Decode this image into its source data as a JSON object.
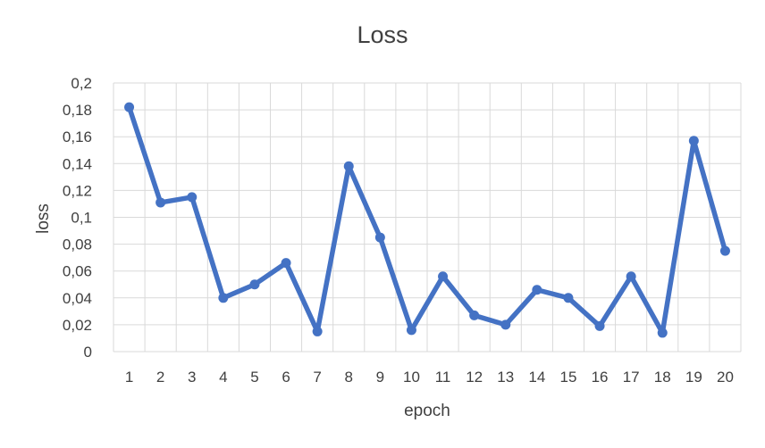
{
  "chart_data": {
    "type": "line",
    "title": "Loss",
    "xlabel": "epoch",
    "ylabel": "loss",
    "categories": [
      "1",
      "2",
      "3",
      "4",
      "5",
      "6",
      "7",
      "8",
      "9",
      "10",
      "11",
      "12",
      "13",
      "14",
      "15",
      "16",
      "17",
      "18",
      "19",
      "20"
    ],
    "series": [
      {
        "values": [
          0.182,
          0.111,
          0.115,
          0.04,
          0.05,
          0.066,
          0.015,
          0.138,
          0.085,
          0.016,
          0.056,
          0.027,
          0.02,
          0.046,
          0.04,
          0.019,
          0.056,
          0.014,
          0.157,
          0.075
        ]
      }
    ],
    "ylim": [
      0,
      0.2
    ],
    "yticks": [
      0,
      0.02,
      0.04,
      0.06,
      0.08,
      0.1,
      0.12,
      0.14,
      0.16,
      0.18,
      0.2
    ],
    "ytick_labels": [
      "0",
      "0,02",
      "0,04",
      "0,06",
      "0,08",
      "0,1",
      "0,12",
      "0,14",
      "0,16",
      "0,18",
      "0,2"
    ],
    "grid": "both",
    "legend": "none",
    "colors": {
      "series": "#4472c4",
      "grid": "#d9d9d9",
      "text": "#404040"
    }
  }
}
